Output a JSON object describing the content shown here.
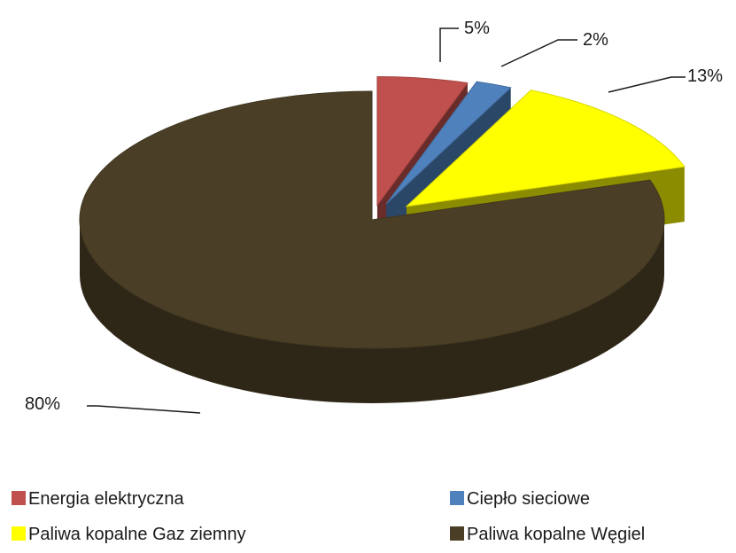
{
  "chart_data": {
    "type": "pie",
    "title": "",
    "categories": [
      "Energia elektryczna",
      "Ciepło sieciowe",
      "Paliwa kopalne Gaz ziemny",
      "Paliwa kopalne Węgiel"
    ],
    "values": [
      5,
      2,
      13,
      80
    ],
    "value_labels": [
      "5%",
      "2%",
      "13%",
      "80%"
    ],
    "colors": [
      "#c0504d",
      "#4f81bd",
      "#ffff00",
      "#4a3f26"
    ],
    "exploded": true,
    "three_d": true,
    "legend": "bottom"
  }
}
